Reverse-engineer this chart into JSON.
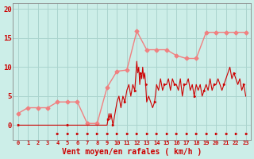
{
  "xlabel": "Vent moyen/en rafales ( km/h )",
  "background_color": "#cceee8",
  "grid_color": "#aad4ce",
  "x_labels": [
    "0",
    "1",
    "2",
    "3",
    "4",
    "5",
    "6",
    "7",
    "8",
    "9",
    "10",
    "11",
    "12",
    "13",
    "14",
    "15",
    "16",
    "17",
    "18",
    "19",
    "20",
    "21",
    "22",
    "23"
  ],
  "ylim": [
    -2.5,
    21
  ],
  "yticks": [
    0,
    5,
    10,
    15,
    20
  ],
  "color_avg": "#f08080",
  "color_gust": "#cc0000",
  "linewidth_avg": 1.0,
  "linewidth_gust": 0.8,
  "wind_avg_x": [
    0,
    1,
    2,
    3,
    4,
    5,
    6,
    7,
    8,
    9,
    10,
    11,
    12,
    13,
    14,
    15,
    16,
    17,
    18,
    19,
    20,
    21,
    22,
    23
  ],
  "wind_avg_y": [
    2.0,
    3.0,
    3.0,
    3.0,
    4.0,
    4.0,
    4.0,
    0.3,
    0.3,
    6.5,
    9.3,
    9.5,
    16.2,
    13.0,
    13.0,
    13.0,
    12.0,
    11.5,
    11.5,
    16.0,
    16.0,
    16.0,
    16.0,
    16.0
  ],
  "wind_gust_x": [
    0,
    1,
    2,
    3,
    4,
    5,
    6,
    7,
    8,
    9,
    9.1,
    9.2,
    9.3,
    9.4,
    9.5,
    9.6,
    10,
    10.2,
    10.4,
    10.6,
    10.8,
    11,
    11.2,
    11.4,
    11.6,
    11.8,
    12,
    12.1,
    12.2,
    12.3,
    12.4,
    12.5,
    12.6,
    12.7,
    12.8,
    12.9,
    13,
    13.2,
    13.4,
    13.6,
    13.8,
    14,
    14.2,
    14.4,
    14.6,
    14.8,
    15,
    15.2,
    15.4,
    15.6,
    15.8,
    16,
    16.2,
    16.4,
    16.6,
    16.8,
    17,
    17.2,
    17.4,
    17.6,
    17.8,
    18,
    18.2,
    18.4,
    18.6,
    18.8,
    19,
    19.2,
    19.4,
    19.6,
    19.8,
    20,
    20.2,
    20.4,
    20.6,
    20.8,
    21,
    21.2,
    21.4,
    21.6,
    21.8,
    22,
    22.2,
    22.4,
    22.6,
    22.8,
    23
  ],
  "wind_gust_y": [
    0,
    0,
    0,
    0,
    0,
    0,
    0,
    0,
    0,
    0,
    1,
    2,
    1,
    2,
    1,
    0,
    4,
    5,
    3,
    5,
    4,
    6,
    7,
    5,
    7,
    6,
    11,
    9,
    10,
    7,
    9,
    8,
    10,
    8,
    9,
    7,
    4,
    5,
    4,
    3,
    4,
    7,
    6,
    8,
    6,
    7,
    7,
    8,
    6,
    8,
    7,
    7,
    6,
    8,
    5,
    7,
    7,
    8,
    6,
    7,
    5,
    7,
    6,
    7,
    5,
    6,
    7,
    6,
    8,
    6,
    7,
    7,
    8,
    7,
    6,
    7,
    8,
    9,
    10,
    8,
    9,
    8,
    7,
    8,
    6,
    7,
    5
  ],
  "wind_dir_x": [
    4,
    5,
    6,
    7,
    8,
    9,
    10,
    11,
    12,
    13,
    14,
    15,
    16,
    17,
    18,
    19,
    20,
    21,
    22,
    23
  ],
  "wind_dir_y": [
    -1.5,
    -1.5,
    -1.5,
    -1.5,
    -1.5,
    -1.5,
    -1.5,
    -1.5,
    -1.5,
    -1.5,
    -1.5,
    -1.5,
    -1.5,
    -1.5,
    -1.5,
    -1.5,
    -1.5,
    -1.5,
    -1.5,
    -1.5
  ]
}
